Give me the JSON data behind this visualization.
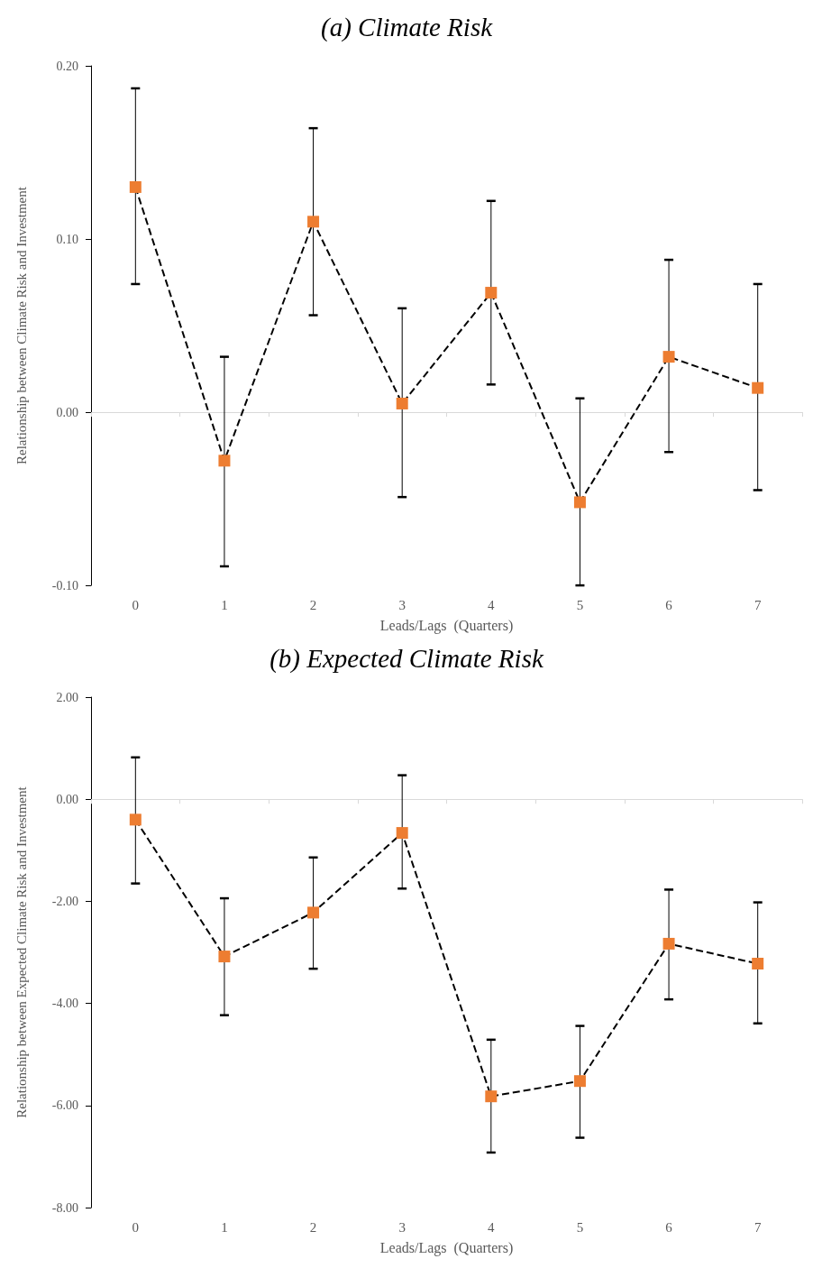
{
  "chart_data": [
    {
      "type": "line",
      "title": "(a) Climate Risk",
      "xlabel": "Leads/Lags  (Quarters)",
      "ylabel": "Relationship between Climate Risk and Investment",
      "categories": [
        "0",
        "1",
        "2",
        "3",
        "4",
        "5",
        "6",
        "7"
      ],
      "marker": "square",
      "line_style": "dashed",
      "ylim": [
        -0.1,
        0.2
      ],
      "yticks": [
        {
          "value": -0.1,
          "label": "-0.10"
        },
        {
          "value": 0,
          "label": "0.00"
        },
        {
          "value": 0.1,
          "label": "0.10"
        },
        {
          "value": 0.2,
          "label": "0.20"
        }
      ],
      "series": [
        {
          "color": "#000000",
          "colors": [
            "#ed7d31",
            "#ed7d31",
            "#ed7d31",
            "#ed7d31",
            "#ed7d31",
            "#ed7d31",
            "#ed7d31",
            "#ed7d31"
          ],
          "values": [
            0.13,
            -0.028,
            0.11,
            0.005,
            0.069,
            -0.052,
            0.032,
            0.014
          ],
          "errors": [
            [
              0.074,
              0.187
            ],
            [
              -0.089,
              0.032
            ],
            [
              0.056,
              0.164
            ],
            [
              -0.049,
              0.06
            ],
            [
              0.016,
              0.122
            ],
            [
              -0.1,
              0.008
            ],
            [
              -0.023,
              0.088
            ],
            [
              -0.045,
              0.074
            ]
          ]
        }
      ]
    },
    {
      "type": "line",
      "title": "(b) Expected Climate Risk",
      "xlabel": "Leads/Lags  (Quarters)",
      "ylabel": "Relationship between Expected Climate Risk and Investment",
      "categories": [
        "0",
        "1",
        "2",
        "3",
        "4",
        "5",
        "6",
        "7"
      ],
      "marker": "square",
      "line_style": "dashed",
      "ylim": [
        -8,
        2
      ],
      "yticks": [
        {
          "value": -8,
          "label": "-8.00"
        },
        {
          "value": -6,
          "label": "-6.00"
        },
        {
          "value": -4,
          "label": "-4.00"
        },
        {
          "value": -2,
          "label": "-2.00"
        },
        {
          "value": 0,
          "label": "0.00"
        },
        {
          "value": 2,
          "label": "2.00"
        }
      ],
      "series": [
        {
          "color": "#000000",
          "colors": [
            "#ed7d31",
            "#ed7d31",
            "#ed7d31",
            "#ed7d31",
            "#ed7d31",
            "#ed7d31",
            "#ed7d31",
            "#ed7d31"
          ],
          "values": [
            -0.4,
            -3.08,
            -2.22,
            -0.66,
            -5.82,
            -5.52,
            -2.83,
            -3.22
          ],
          "errors": [
            [
              -1.65,
              0.82
            ],
            [
              -4.23,
              -1.94
            ],
            [
              -3.32,
              -1.14
            ],
            [
              -1.75,
              0.47
            ],
            [
              -6.92,
              -4.71
            ],
            [
              -6.63,
              -4.44
            ],
            [
              -3.92,
              -1.77
            ],
            [
              -4.39,
              -2.02
            ]
          ]
        }
      ]
    }
  ]
}
